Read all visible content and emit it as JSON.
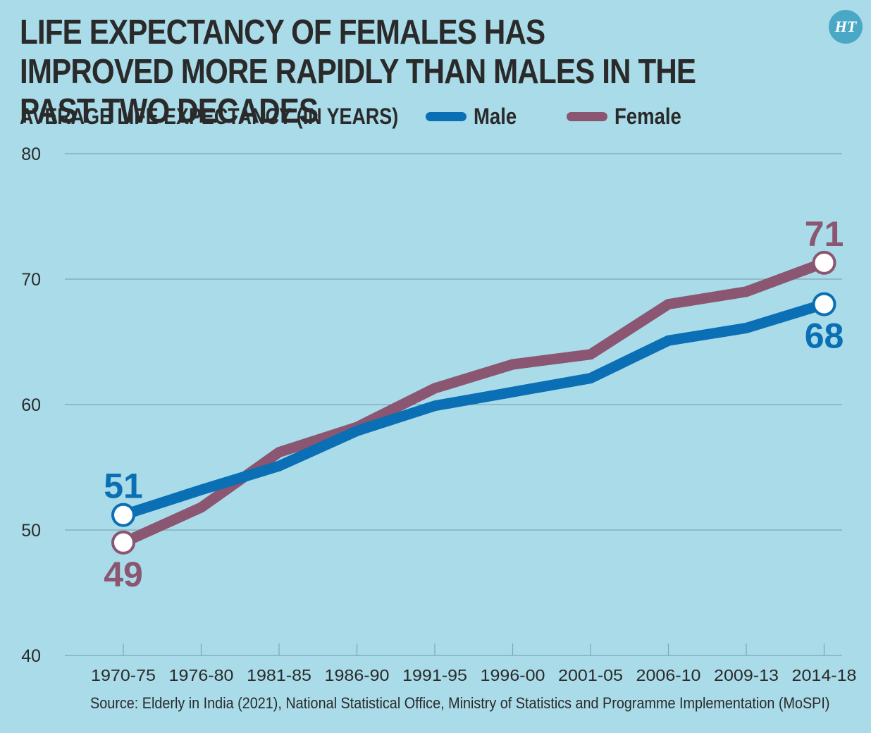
{
  "title": "LIFE EXPECTANCY OF FEMALES HAS IMPROVED MORE RAPIDLY THAN MALES IN THE PAST TWO DECADES",
  "logo_text": "HT",
  "source": "Source: Elderly in India (2021), National Statistical Office, Ministry of Statistics and Programme Implementation (MoSPI)",
  "colors": {
    "background": "#a9dbe8",
    "male": "#0a6fb4",
    "female": "#8b5671",
    "grid": "#7fa7b3",
    "text": "#2b2b2b"
  },
  "chart_data": {
    "type": "line",
    "ylabel": "AVERAGE LIFE EXPECTANCY (IN YEARS)",
    "categories": [
      "1970-75",
      "1976-80",
      "1981-85",
      "1986-90",
      "1991-95",
      "1996-00",
      "2001-05",
      "2006-10",
      "2009-13",
      "2014-18"
    ],
    "ylim": [
      40,
      80
    ],
    "yticks": [
      40,
      50,
      60,
      70,
      80
    ],
    "grid": true,
    "legend_position": "top",
    "series": [
      {
        "name": "Male",
        "color": "#0a6fb4",
        "values": [
          51.2,
          53.2,
          55.1,
          57.9,
          59.9,
          61.0,
          62.1,
          65.1,
          66.1,
          68.0
        ]
      },
      {
        "name": "Female",
        "color": "#8b5671",
        "values": [
          49.0,
          51.8,
          56.2,
          58.2,
          61.3,
          63.2,
          64.0,
          68.0,
          69.0,
          71.3
        ]
      }
    ],
    "annotations": [
      {
        "series": "Male",
        "index": 0,
        "text": "51",
        "placement": "above"
      },
      {
        "series": "Female",
        "index": 0,
        "text": "49",
        "placement": "below"
      },
      {
        "series": "Female",
        "index": 9,
        "text": "71",
        "placement": "above"
      },
      {
        "series": "Male",
        "index": 9,
        "text": "68",
        "placement": "below"
      }
    ]
  }
}
